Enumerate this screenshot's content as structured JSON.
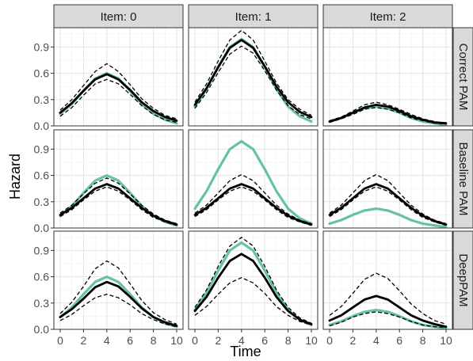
{
  "chart_data": {
    "type": "line",
    "xlabel": "Time",
    "ylabel": "Hazard",
    "x_ticks": [
      0,
      2,
      4,
      6,
      8,
      10
    ],
    "y_ticks": [
      0.0,
      0.3,
      0.6,
      0.9
    ],
    "y_tick_labels": [
      "0.0",
      "0.3",
      "0.6",
      "0.9"
    ],
    "xlim": [
      0,
      10
    ],
    "ylim": [
      0,
      1.12
    ],
    "grid": true,
    "columns": [
      "Item: 0",
      "Item: 1",
      "Item: 2"
    ],
    "rows": [
      "Correct PAM",
      "Baseline PAM",
      "DeepPAM"
    ],
    "colors": {
      "truth": "#66c2a5",
      "estimate": "#000000",
      "interval": "#000000",
      "strip_fill": "#d9d9d9",
      "panel_border": "#333333"
    },
    "x": [
      0,
      1,
      2,
      3,
      4,
      5,
      6,
      7,
      8,
      9,
      10
    ],
    "panels": [
      {
        "row": "Correct PAM",
        "col": "Item: 0",
        "truth": [
          0.14,
          0.25,
          0.4,
          0.54,
          0.6,
          0.54,
          0.4,
          0.25,
          0.14,
          0.07,
          0.03
        ],
        "estimate": [
          0.15,
          0.26,
          0.4,
          0.53,
          0.59,
          0.53,
          0.41,
          0.27,
          0.17,
          0.1,
          0.06
        ],
        "lower": [
          0.11,
          0.21,
          0.35,
          0.48,
          0.53,
          0.48,
          0.36,
          0.23,
          0.13,
          0.07,
          0.04
        ],
        "upper": [
          0.18,
          0.3,
          0.46,
          0.62,
          0.71,
          0.62,
          0.47,
          0.31,
          0.2,
          0.12,
          0.08
        ]
      },
      {
        "row": "Correct PAM",
        "col": "Item: 1",
        "truth": [
          0.22,
          0.42,
          0.67,
          0.9,
          0.99,
          0.9,
          0.67,
          0.42,
          0.22,
          0.11,
          0.05
        ],
        "estimate": [
          0.24,
          0.43,
          0.67,
          0.89,
          0.98,
          0.89,
          0.68,
          0.45,
          0.27,
          0.16,
          0.1
        ],
        "lower": [
          0.2,
          0.38,
          0.61,
          0.82,
          0.91,
          0.83,
          0.63,
          0.41,
          0.23,
          0.13,
          0.08
        ],
        "upper": [
          0.27,
          0.48,
          0.74,
          0.98,
          1.09,
          0.98,
          0.74,
          0.49,
          0.3,
          0.19,
          0.12
        ]
      },
      {
        "row": "Correct PAM",
        "col": "Item: 2",
        "truth": [
          0.05,
          0.09,
          0.15,
          0.2,
          0.22,
          0.2,
          0.15,
          0.09,
          0.05,
          0.03,
          0.01
        ],
        "estimate": [
          0.05,
          0.09,
          0.15,
          0.21,
          0.24,
          0.22,
          0.17,
          0.11,
          0.07,
          0.04,
          0.03
        ],
        "lower": [
          0.04,
          0.08,
          0.13,
          0.19,
          0.21,
          0.19,
          0.15,
          0.09,
          0.06,
          0.03,
          0.02
        ],
        "upper": [
          0.06,
          0.1,
          0.17,
          0.24,
          0.27,
          0.24,
          0.19,
          0.13,
          0.08,
          0.05,
          0.03
        ]
      },
      {
        "row": "Baseline PAM",
        "col": "Item: 0",
        "truth": [
          0.14,
          0.25,
          0.4,
          0.54,
          0.6,
          0.54,
          0.4,
          0.25,
          0.14,
          0.07,
          0.03
        ],
        "estimate": [
          0.15,
          0.23,
          0.34,
          0.45,
          0.5,
          0.45,
          0.34,
          0.23,
          0.14,
          0.08,
          0.04
        ],
        "lower": [
          0.13,
          0.21,
          0.32,
          0.42,
          0.47,
          0.42,
          0.32,
          0.21,
          0.12,
          0.07,
          0.03
        ],
        "upper": [
          0.17,
          0.26,
          0.39,
          0.51,
          0.57,
          0.51,
          0.39,
          0.26,
          0.16,
          0.09,
          0.05
        ]
      },
      {
        "row": "Baseline PAM",
        "col": "Item: 1",
        "truth": [
          0.22,
          0.42,
          0.67,
          0.9,
          0.99,
          0.9,
          0.67,
          0.42,
          0.22,
          0.11,
          0.05
        ],
        "estimate": [
          0.15,
          0.23,
          0.34,
          0.45,
          0.5,
          0.45,
          0.34,
          0.23,
          0.14,
          0.08,
          0.04
        ],
        "lower": [
          0.13,
          0.21,
          0.32,
          0.42,
          0.47,
          0.42,
          0.32,
          0.21,
          0.12,
          0.07,
          0.03
        ],
        "upper": [
          0.17,
          0.26,
          0.4,
          0.54,
          0.61,
          0.54,
          0.4,
          0.26,
          0.16,
          0.09,
          0.05
        ]
      },
      {
        "row": "Baseline PAM",
        "col": "Item: 2",
        "truth": [
          0.05,
          0.09,
          0.15,
          0.2,
          0.22,
          0.2,
          0.15,
          0.09,
          0.05,
          0.03,
          0.01
        ],
        "estimate": [
          0.15,
          0.23,
          0.34,
          0.45,
          0.5,
          0.45,
          0.34,
          0.23,
          0.14,
          0.08,
          0.04
        ],
        "lower": [
          0.13,
          0.21,
          0.32,
          0.42,
          0.47,
          0.42,
          0.32,
          0.21,
          0.12,
          0.07,
          0.03
        ],
        "upper": [
          0.17,
          0.26,
          0.4,
          0.54,
          0.61,
          0.54,
          0.4,
          0.26,
          0.16,
          0.09,
          0.05
        ]
      },
      {
        "row": "DeepPAM",
        "col": "Item: 0",
        "truth": [
          0.14,
          0.25,
          0.4,
          0.54,
          0.6,
          0.54,
          0.4,
          0.25,
          0.14,
          0.07,
          0.03
        ],
        "estimate": [
          0.14,
          0.23,
          0.35,
          0.48,
          0.54,
          0.49,
          0.37,
          0.24,
          0.14,
          0.08,
          0.04
        ],
        "lower": [
          0.1,
          0.17,
          0.27,
          0.36,
          0.4,
          0.36,
          0.28,
          0.18,
          0.11,
          0.06,
          0.03
        ],
        "upper": [
          0.18,
          0.31,
          0.49,
          0.69,
          0.78,
          0.7,
          0.52,
          0.33,
          0.19,
          0.11,
          0.06
        ]
      },
      {
        "row": "DeepPAM",
        "col": "Item: 1",
        "truth": [
          0.22,
          0.42,
          0.67,
          0.9,
          0.99,
          0.9,
          0.67,
          0.42,
          0.22,
          0.11,
          0.05
        ],
        "estimate": [
          0.21,
          0.37,
          0.59,
          0.78,
          0.86,
          0.78,
          0.59,
          0.37,
          0.21,
          0.11,
          0.06
        ],
        "lower": [
          0.16,
          0.26,
          0.4,
          0.53,
          0.59,
          0.53,
          0.41,
          0.26,
          0.16,
          0.09,
          0.05
        ],
        "upper": [
          0.25,
          0.45,
          0.72,
          0.95,
          1.05,
          0.95,
          0.72,
          0.45,
          0.25,
          0.13,
          0.07
        ]
      },
      {
        "row": "DeepPAM",
        "col": "Item: 2",
        "truth": [
          0.05,
          0.09,
          0.15,
          0.2,
          0.22,
          0.2,
          0.15,
          0.09,
          0.05,
          0.03,
          0.01
        ],
        "estimate": [
          0.1,
          0.16,
          0.25,
          0.34,
          0.38,
          0.34,
          0.25,
          0.16,
          0.1,
          0.06,
          0.03
        ],
        "lower": [
          0.04,
          0.08,
          0.14,
          0.18,
          0.2,
          0.18,
          0.14,
          0.09,
          0.05,
          0.03,
          0.02
        ],
        "upper": [
          0.16,
          0.26,
          0.41,
          0.57,
          0.64,
          0.58,
          0.44,
          0.29,
          0.18,
          0.1,
          0.06
        ]
      }
    ]
  }
}
